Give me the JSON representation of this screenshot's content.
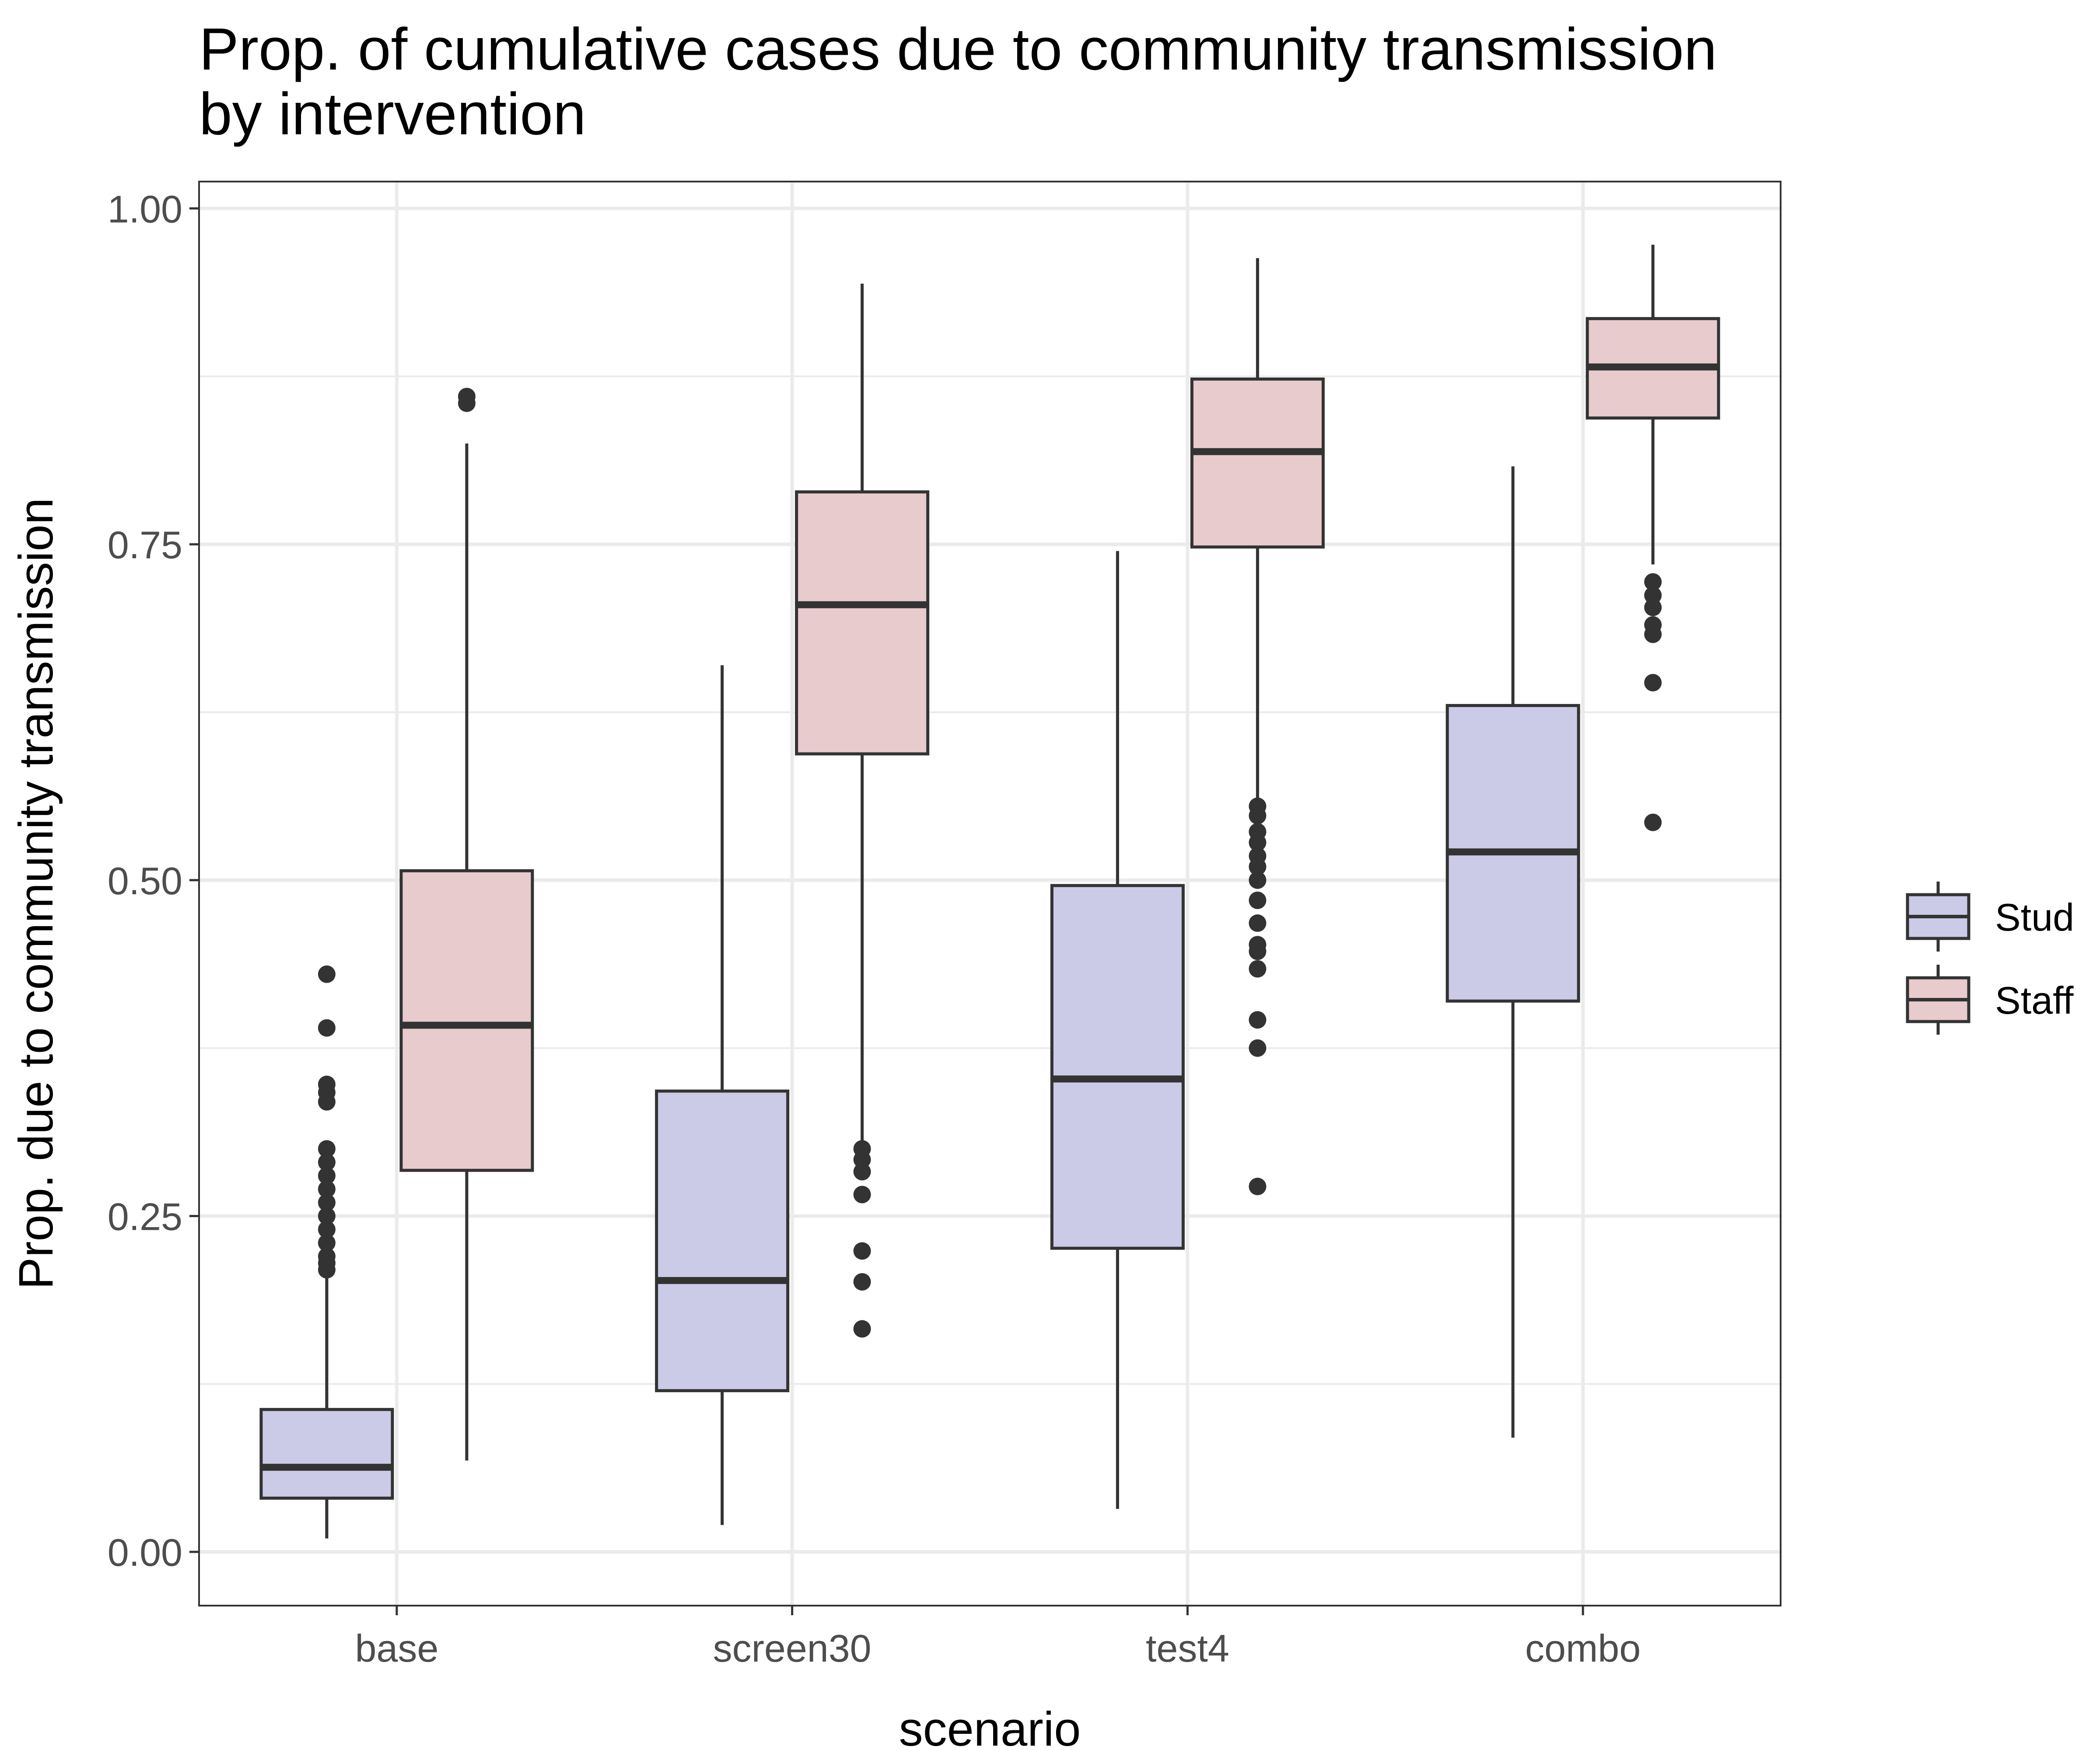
{
  "title_lines": [
    "Prop. of cumulative cases due to community transmission",
    "by intervention"
  ],
  "chart_data": {
    "type": "boxplot",
    "title": "Prop. of cumulative cases due to community transmission by intervention",
    "xlabel": "scenario",
    "ylabel": "Prop. due to community transmission",
    "categories": [
      "base",
      "screen30",
      "test4",
      "combo"
    ],
    "ylim": [
      -0.04,
      1.02
    ],
    "yticks": [
      {
        "value": 0,
        "label": "0.00"
      },
      {
        "value": 0.25,
        "label": "0.25"
      },
      {
        "value": 0.5,
        "label": "0.50"
      },
      {
        "value": 0.75,
        "label": "0.75"
      },
      {
        "value": 1.0,
        "label": "1.00"
      }
    ],
    "grid": true,
    "legend_position": "right",
    "series": [
      {
        "name": "Stud",
        "fill": "#cbcbe8",
        "stroke": "#333333",
        "boxes": [
          {
            "category": "base",
            "whisker_low": 0.01,
            "q1": 0.04,
            "median": 0.063,
            "q3": 0.106,
            "whisker_high": 0.205,
            "outliers": [
              0.21,
              0.215,
              0.22,
              0.23,
              0.24,
              0.25,
              0.26,
              0.27,
              0.28,
              0.29,
              0.3,
              0.335,
              0.342,
              0.348,
              0.39,
              0.43
            ]
          },
          {
            "category": "screen30",
            "whisker_low": 0.02,
            "q1": 0.12,
            "median": 0.202,
            "q3": 0.343,
            "whisker_high": 0.66,
            "outliers": []
          },
          {
            "category": "test4",
            "whisker_low": 0.032,
            "q1": 0.226,
            "median": 0.352,
            "q3": 0.496,
            "whisker_high": 0.745,
            "outliers": []
          },
          {
            "category": "combo",
            "whisker_low": 0.085,
            "q1": 0.41,
            "median": 0.521,
            "q3": 0.63,
            "whisker_high": 0.808,
            "outliers": []
          }
        ]
      },
      {
        "name": "Staff",
        "fill": "#e8cbcd",
        "stroke": "#333333",
        "boxes": [
          {
            "category": "base",
            "whisker_low": 0.068,
            "q1": 0.284,
            "median": 0.392,
            "q3": 0.507,
            "whisker_high": 0.825,
            "outliers": [
              0.855,
              0.86
            ]
          },
          {
            "category": "screen30",
            "whisker_low": 0.3,
            "q1": 0.594,
            "median": 0.705,
            "q3": 0.789,
            "whisker_high": 0.944,
            "outliers": [
              0.166,
              0.201,
              0.224,
              0.266,
              0.283,
              0.292,
              0.3
            ]
          },
          {
            "category": "test4",
            "whisker_low": 0.56,
            "q1": 0.748,
            "median": 0.819,
            "q3": 0.873,
            "whisker_high": 0.963,
            "outliers": [
              0.272,
              0.375,
              0.396,
              0.434,
              0.447,
              0.452,
              0.468,
              0.485,
              0.5,
              0.51,
              0.518,
              0.528,
              0.536,
              0.548,
              0.555
            ]
          },
          {
            "category": "combo",
            "whisker_low": 0.735,
            "q1": 0.844,
            "median": 0.882,
            "q3": 0.918,
            "whisker_high": 0.973,
            "outliers": [
              0.543,
              0.647,
              0.683,
              0.69,
              0.703,
              0.712,
              0.722
            ]
          }
        ]
      }
    ]
  }
}
